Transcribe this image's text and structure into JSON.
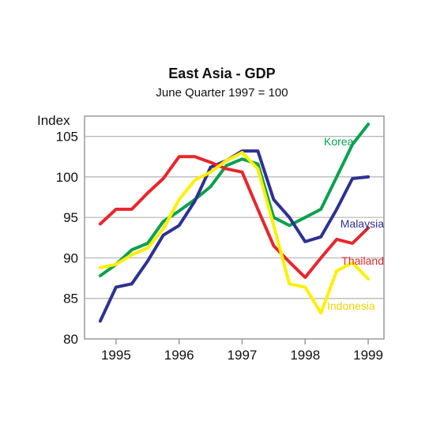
{
  "chart_data": {
    "type": "line",
    "title": "East Asia - GDP",
    "subtitle": "June Quarter 1997 = 100",
    "ylabel": "Index",
    "xlabel": "",
    "ylim": [
      80,
      107.5
    ],
    "xlim": [
      1994.5,
      1999.25
    ],
    "yticks": [
      80,
      85,
      90,
      95,
      100,
      105
    ],
    "xticks": [
      1995,
      1996,
      1997,
      1998,
      1999
    ],
    "grid": true,
    "x": [
      1994.75,
      1995.0,
      1995.25,
      1995.5,
      1995.75,
      1996.0,
      1996.25,
      1996.5,
      1996.75,
      1997.0,
      1997.25,
      1997.5,
      1997.75,
      1998.0,
      1998.25,
      1998.5,
      1998.75,
      1999.0
    ],
    "series": [
      {
        "name": "Korea",
        "color": "#0aa050",
        "values": [
          87.8,
          89.2,
          91.0,
          91.8,
          94.5,
          95.8,
          97.2,
          98.8,
          101.4,
          102.2,
          101.6,
          95.0,
          94.0,
          95.0,
          96.0,
          100.0,
          104.0,
          106.5
        ]
      },
      {
        "name": "Malaysia",
        "color": "#2e3192",
        "values": [
          82.2,
          86.4,
          86.8,
          89.6,
          92.8,
          94.0,
          97.0,
          101.2,
          102.0,
          103.2,
          103.2,
          97.2,
          95.0,
          92.0,
          92.6,
          96.0,
          99.8,
          100.0
        ]
      },
      {
        "name": "Thailand",
        "color": "#e8262b",
        "values": [
          94.2,
          96.0,
          96.0,
          98.0,
          99.8,
          102.5,
          102.5,
          101.8,
          101.0,
          100.6,
          96.0,
          91.5,
          89.5,
          87.6,
          90.0,
          92.3,
          91.8,
          93.7
        ]
      },
      {
        "name": "Indonesia",
        "color": "#ffef00",
        "values": [
          88.8,
          89.2,
          90.4,
          91.2,
          93.6,
          97.2,
          99.6,
          100.6,
          102.0,
          103.0,
          101.0,
          94.0,
          86.8,
          86.4,
          83.2,
          88.4,
          89.4,
          87.4
        ]
      }
    ],
    "series_labels": [
      {
        "text": "Korea",
        "color": "#0aa050"
      },
      {
        "text": "Malaysia",
        "color": "#2e3192"
      },
      {
        "text": "Thailand",
        "color": "#e8262b"
      },
      {
        "text": "Indonesia",
        "color": "#f2d200"
      }
    ]
  }
}
